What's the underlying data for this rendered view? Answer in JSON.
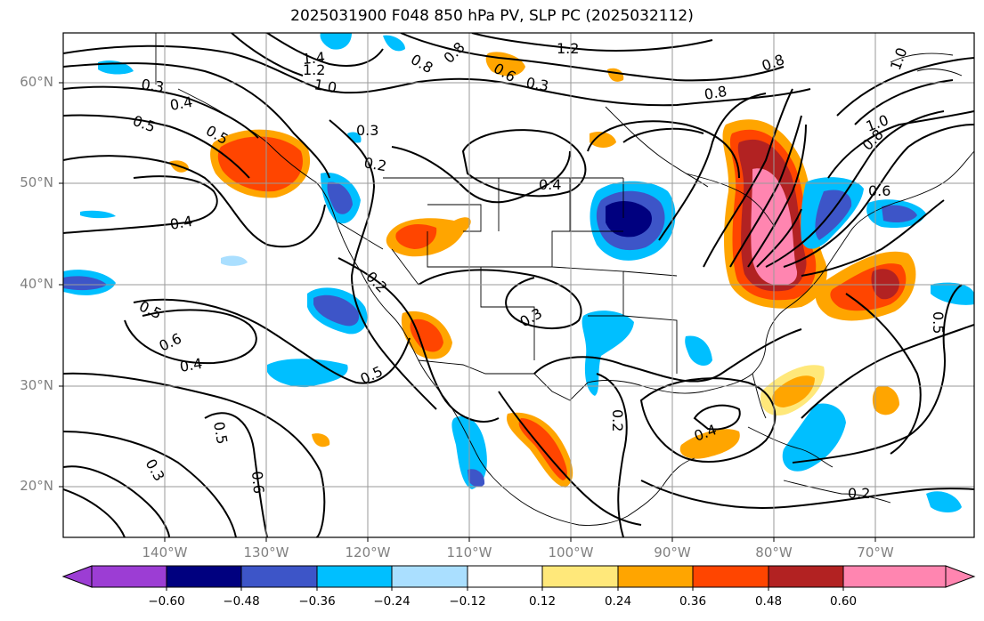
{
  "title": "2025031900 F048 850 hPa PV, SLP PC (2025032112)",
  "lat_labels": [
    "60°N",
    "50°N",
    "40°N",
    "30°N",
    "20°N"
  ],
  "lon_labels": [
    "140°W",
    "130°W",
    "120°W",
    "110°W",
    "100°W",
    "90°W",
    "80°W",
    "70°W"
  ],
  "colorbar": {
    "colors": [
      "#9c3dd4",
      "#00007f",
      "#3d55c8",
      "#00bfff",
      "#aadfff",
      "#ffffff",
      "#ffe87a",
      "#ffa500",
      "#ff4500",
      "#b22222",
      "#ff85b0"
    ],
    "ticks": [
      "−0.60",
      "−0.48",
      "−0.36",
      "−0.24",
      "−0.12",
      "0.12",
      "0.24",
      "0.36",
      "0.48",
      "0.60"
    ]
  },
  "contour_labels": [
    "1.4",
    "1.2",
    "1.0",
    "0.3",
    "0.4",
    "0.5",
    "0.5",
    "0.3",
    "0.2",
    "0.4",
    "0.4",
    "0.2",
    "0.3",
    "0.5",
    "0.6",
    "0.4",
    "0.5",
    "0.5",
    "0.6",
    "0.3",
    "0.2",
    "0.4",
    "1.2",
    "0.6",
    "0.8",
    "0.8",
    "0.3",
    "0.8",
    "0.8",
    "1.0",
    "0.8",
    "0.6",
    "0.5",
    "0.2",
    "1.0"
  ]
}
